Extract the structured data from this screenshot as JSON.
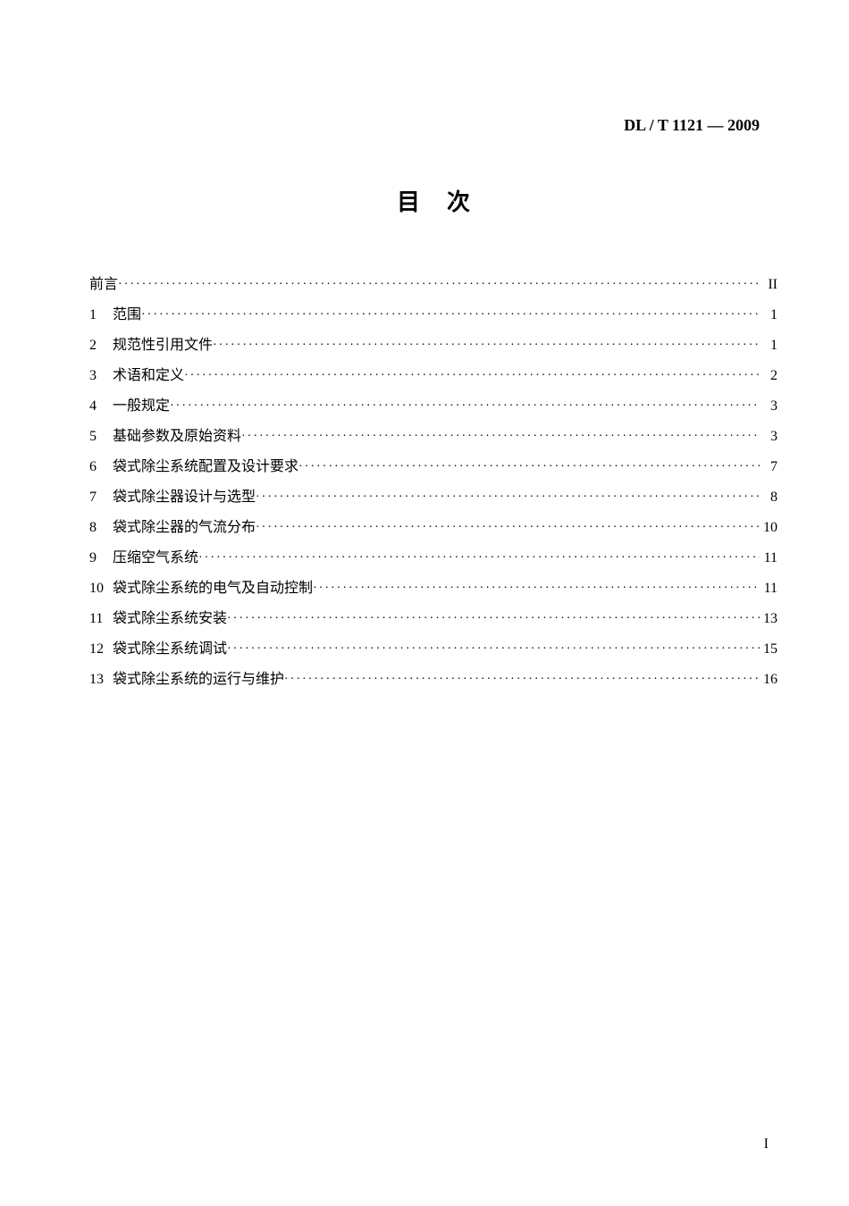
{
  "header": {
    "standard_code": "DL / T 1121 — 2009"
  },
  "title": "目次",
  "toc": [
    {
      "num": "",
      "text": "前言",
      "page": "II"
    },
    {
      "num": "1",
      "text": "范围",
      "page": "1"
    },
    {
      "num": "2",
      "text": "规范性引用文件",
      "page": "1"
    },
    {
      "num": "3",
      "text": "术语和定义",
      "page": "2"
    },
    {
      "num": "4",
      "text": "一般规定",
      "page": "3"
    },
    {
      "num": "5",
      "text": "基础参数及原始资料",
      "page": "3"
    },
    {
      "num": "6",
      "text": "袋式除尘系统配置及设计要求",
      "page": "7"
    },
    {
      "num": "7",
      "text": "袋式除尘器设计与选型",
      "page": "8"
    },
    {
      "num": "8",
      "text": "袋式除尘器的气流分布",
      "page": "10"
    },
    {
      "num": "9",
      "text": "压缩空气系统",
      "page": "11"
    },
    {
      "num": "10",
      "text": "袋式除尘系统的电气及自动控制",
      "page": "11"
    },
    {
      "num": "11",
      "text": "袋式除尘系统安装",
      "page": "13"
    },
    {
      "num": "12",
      "text": "袋式除尘系统调试",
      "page": "15"
    },
    {
      "num": "13",
      "text": "袋式除尘系统的运行与维护",
      "page": "16"
    }
  ],
  "footer": {
    "page_number": "I"
  },
  "styling": {
    "background_color": "#ffffff",
    "text_color": "#000000",
    "title_fontsize": 26,
    "body_fontsize": 16,
    "header_fontsize": 18,
    "line_height": 2.0,
    "font_family": "SimSun"
  }
}
